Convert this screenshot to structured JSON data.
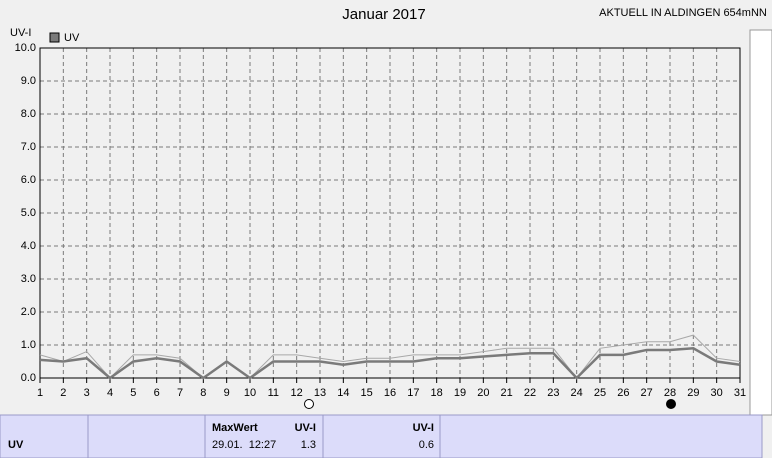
{
  "chart_data": {
    "type": "line",
    "title": "Januar 2017",
    "subtitle": "AKTUELL IN ALDINGEN 654mNN",
    "y_label": "UV-I",
    "x": [
      1,
      2,
      3,
      4,
      5,
      6,
      7,
      8,
      9,
      10,
      11,
      12,
      13,
      14,
      15,
      16,
      17,
      18,
      19,
      20,
      21,
      22,
      23,
      24,
      25,
      26,
      27,
      28,
      29,
      30,
      31
    ],
    "xlim": [
      1,
      31
    ],
    "xticks": [
      1,
      2,
      3,
      4,
      5,
      6,
      7,
      8,
      9,
      10,
      11,
      12,
      13,
      14,
      15,
      16,
      17,
      18,
      19,
      20,
      21,
      22,
      23,
      24,
      25,
      26,
      27,
      28,
      29,
      30,
      31
    ],
    "ylim": [
      0,
      10
    ],
    "yticks": [
      {
        "value": 0,
        "label": "0.0"
      },
      {
        "value": 1,
        "label": "1.0"
      },
      {
        "value": 2,
        "label": "2.0"
      },
      {
        "value": 3,
        "label": "3.0"
      },
      {
        "value": 4,
        "label": "4.0"
      },
      {
        "value": 5,
        "label": "5.0"
      },
      {
        "value": 6,
        "label": "6.0"
      },
      {
        "value": 7,
        "label": "7.0"
      },
      {
        "value": 8,
        "label": "8.0"
      },
      {
        "value": 9,
        "label": "9.0"
      },
      {
        "value": 10,
        "label": "10.0"
      }
    ],
    "grid": true,
    "series": [
      {
        "name": "UV",
        "color": "#7a7a7a",
        "values": [
          0.55,
          0.5,
          0.6,
          0,
          0.5,
          0.6,
          0.5,
          0,
          0.5,
          0,
          0.5,
          0.5,
          0.5,
          0.4,
          0.5,
          0.5,
          0.5,
          0.6,
          0.6,
          0.65,
          0.7,
          0.75,
          0.75,
          0,
          0.7,
          0.7,
          0.85,
          0.85,
          0.9,
          0.5,
          0.4
        ]
      },
      {
        "color": "#a8a8a8",
        "values": [
          0.7,
          0.5,
          0.8,
          0,
          0.7,
          0.7,
          0.6,
          0,
          0.5,
          0,
          0.7,
          0.7,
          0.6,
          0.5,
          0.6,
          0.6,
          0.7,
          0.7,
          0.7,
          0.8,
          0.9,
          0.9,
          0.9,
          0,
          0.9,
          1.0,
          1.1,
          1.1,
          1.3,
          0.6,
          0.5
        ]
      }
    ]
  },
  "table": {
    "row_label": "UV",
    "max_header": "MaxWert",
    "max_unit": "UV-I",
    "max_time": "29.01.  12:27",
    "max_value": 1.3,
    "avg_unit": "UV-I",
    "avg_value": 0.6
  }
}
